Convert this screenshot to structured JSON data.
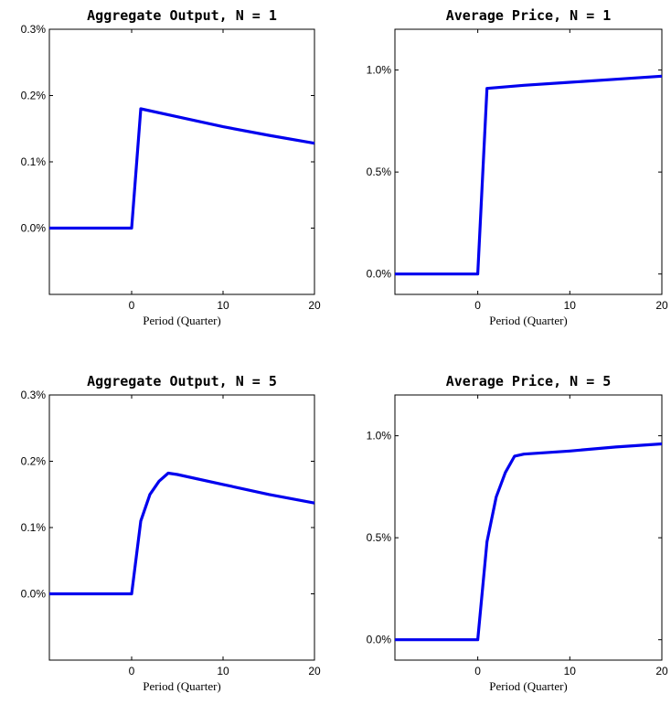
{
  "figure": {
    "line_color": "#0000ee"
  },
  "chart_data": [
    {
      "type": "line",
      "title": "Aggregate Output, N = 1",
      "xlabel": "",
      "ylabel": "",
      "xlim": [
        -9,
        20
      ],
      "ylim": [
        -0.1,
        0.3
      ],
      "xticks": [
        0,
        10,
        20
      ],
      "xtick_labels": [
        "0",
        "10",
        "20"
      ],
      "yticks": [
        0.0,
        0.1,
        0.2,
        0.3
      ],
      "ytick_labels": [
        "0.0%",
        "0.1%",
        "0.2%",
        "0.3%"
      ],
      "grid": false,
      "series": [
        {
          "x": [
            -9,
            0,
            1,
            5,
            10,
            15,
            20
          ],
          "y": [
            0.0,
            0.0,
            0.18,
            0.168,
            0.153,
            0.14,
            0.128
          ]
        }
      ]
    },
    {
      "type": "line",
      "title": "Average Price, N = 1",
      "xlabel": "",
      "ylabel": "",
      "xlim": [
        -9,
        20
      ],
      "ylim": [
        -0.1,
        1.2
      ],
      "xticks": [
        0,
        10,
        20
      ],
      "xtick_labels": [
        "0",
        "10",
        "20"
      ],
      "yticks": [
        0.0,
        0.5,
        1.0
      ],
      "ytick_labels": [
        "0.0%",
        "0.5%",
        "1.0%"
      ],
      "grid": false,
      "series": [
        {
          "x": [
            -9,
            0,
            1,
            5,
            10,
            15,
            20
          ],
          "y": [
            0.0,
            0.0,
            0.91,
            0.925,
            0.94,
            0.955,
            0.97
          ]
        }
      ]
    },
    {
      "type": "line",
      "title": "Aggregate Output, N = 5",
      "xlabel": "Period (Quarter)",
      "ylabel": "",
      "xlim": [
        -9,
        20
      ],
      "ylim": [
        -0.1,
        0.3
      ],
      "xticks": [
        0,
        10,
        20
      ],
      "xtick_labels": [
        "0",
        "10",
        "20"
      ],
      "yticks": [
        0.0,
        0.1,
        0.2,
        0.3
      ],
      "ytick_labels": [
        "0.0%",
        "0.1%",
        "0.2%",
        "0.3%"
      ],
      "grid": false,
      "series": [
        {
          "x": [
            -9,
            0,
            1,
            2,
            3,
            4,
            5,
            10,
            15,
            20
          ],
          "y": [
            0.0,
            0.0,
            0.11,
            0.15,
            0.17,
            0.182,
            0.18,
            0.165,
            0.15,
            0.137
          ]
        }
      ]
    },
    {
      "type": "line",
      "title": "Average Price, N = 5",
      "xlabel": "Period (Quarter)",
      "ylabel": "",
      "xlim": [
        -9,
        20
      ],
      "ylim": [
        -0.1,
        1.2
      ],
      "xticks": [
        0,
        10,
        20
      ],
      "xtick_labels": [
        "0",
        "10",
        "20"
      ],
      "yticks": [
        0.0,
        0.5,
        1.0
      ],
      "ytick_labels": [
        "0.0%",
        "0.5%",
        "1.0%"
      ],
      "grid": false,
      "series": [
        {
          "x": [
            -9,
            0,
            1,
            2,
            3,
            4,
            5,
            10,
            15,
            20
          ],
          "y": [
            0.0,
            0.0,
            0.48,
            0.7,
            0.82,
            0.9,
            0.91,
            0.925,
            0.945,
            0.96
          ]
        }
      ]
    }
  ]
}
